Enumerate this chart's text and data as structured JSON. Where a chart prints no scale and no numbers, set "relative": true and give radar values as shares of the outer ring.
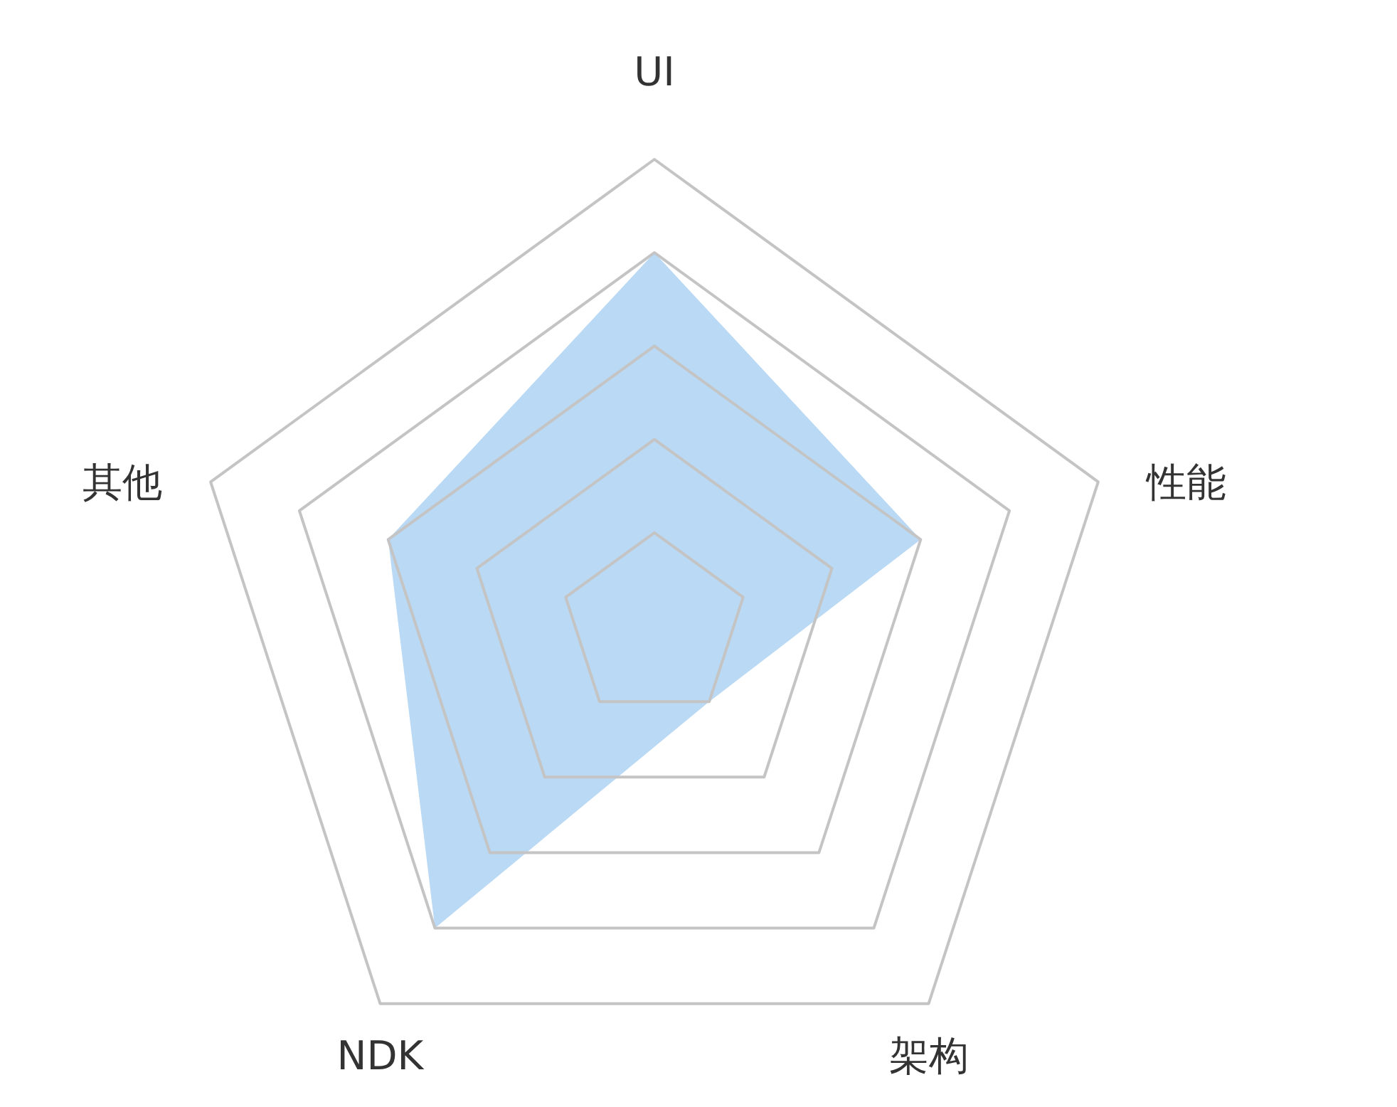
{
  "chart_data": {
    "type": "radar",
    "relative": true,
    "grid": true,
    "categories": [
      "UI",
      "性能",
      "架构",
      "NDK",
      "其他"
    ],
    "series": [
      {
        "color": "#bad9f4",
        "values": [
          0.8,
          0.6,
          0.2,
          0.8,
          0.6
        ]
      }
    ]
  }
}
